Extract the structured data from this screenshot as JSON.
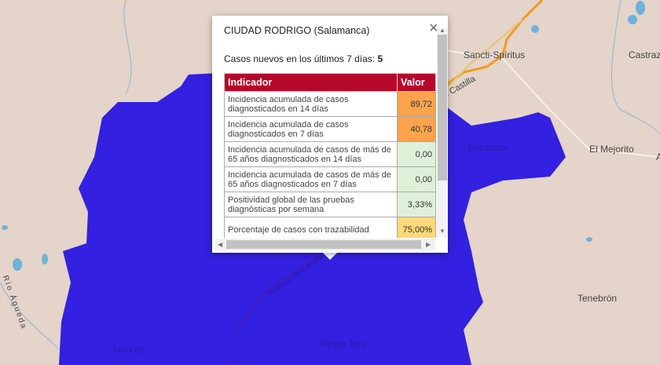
{
  "map": {
    "colors": {
      "land": "#e4d4c9",
      "region_fill": "#3320e0",
      "highway": "#f39a1c",
      "water": "#6fb2db"
    },
    "labels": [
      "Sancti-Spíritus",
      "Castraz",
      "Bocacara",
      "El Mejorito",
      "A",
      "Tenebrón",
      "Ivanrey",
      "Pedro Toro",
      "Río Águeda",
      "Autovía de Castilla",
      "e Castilla"
    ]
  },
  "popup": {
    "title": "CIUDAD RODRIGO (Salamanca)",
    "cases_label": "Casos nuevos en los últimos 7 días:",
    "cases_value": "5",
    "close_icon": "close-icon",
    "table": {
      "headers": [
        "Indicador",
        "Valor"
      ],
      "header_color": "#b5092a",
      "rows": [
        {
          "indicator": "Incidencia acumulada de casos diagnosticados en 14 días",
          "value": "89,72",
          "color": "#fba34d"
        },
        {
          "indicator": "Incidencia acumulada de casos diagnosticados en 7 días",
          "value": "40,78",
          "color": "#fba34d"
        },
        {
          "indicator": "Incidencia acumulada de casos de más de 65 años diagnosticados en 14 días",
          "value": "0,00",
          "color": "#dff0d8"
        },
        {
          "indicator": "Incidencia acumulada de casos de más de 65 años diagnosticados en 7 días",
          "value": "0,00",
          "color": "#dff0d8"
        },
        {
          "indicator": "Positividad global de las pruebas diagnósticas por semana",
          "value": "3,33%",
          "color": "#dff0d8"
        },
        {
          "indicator": "Porcentaje de casos con trazabilidad",
          "value": "75,00%",
          "color": "#ffd978"
        }
      ]
    }
  }
}
